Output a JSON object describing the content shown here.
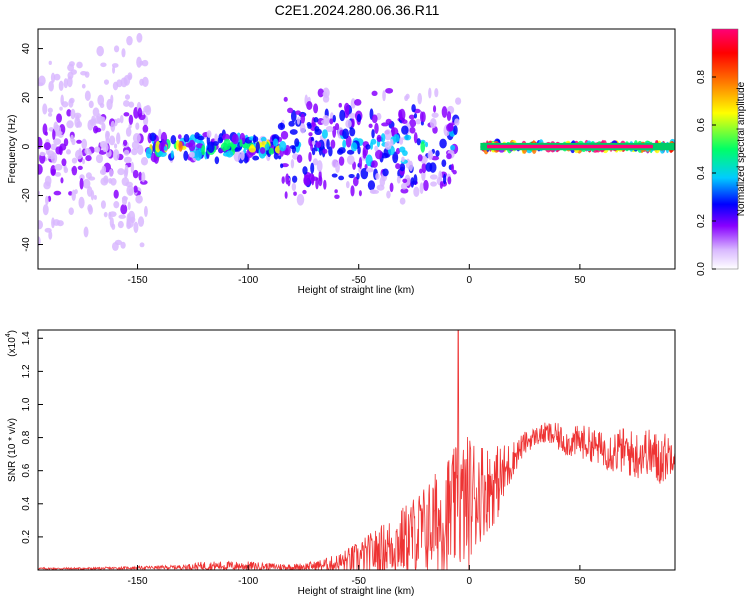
{
  "title": "C2E1.2024.280.06.36.R11",
  "chart_data": [
    {
      "type": "heatmap",
      "xlabel": "Height of straight line (km)",
      "ylabel": "Frequency (Hz)",
      "xlim": [
        -195,
        93
      ],
      "ylim": [
        -50,
        48
      ],
      "xticks": [
        -150,
        -100,
        -50,
        0,
        50
      ],
      "yticks": [
        -40,
        -20,
        0,
        20,
        40
      ],
      "grid": false,
      "colorbar": {
        "label": "Normalized spectral amplitude",
        "range": [
          0,
          1
        ],
        "ticks": [
          "0.0",
          "0.2",
          "0.4",
          "0.6",
          "0.8"
        ],
        "colors": [
          "#ffffff",
          "#d9b8ff",
          "#8800ff",
          "#0000ff",
          "#00ccff",
          "#00ff66",
          "#ffff00",
          "#ff7700",
          "#ff0000",
          "#ff0077"
        ]
      },
      "carrier": {
        "frequency": 0,
        "x_start": 5,
        "x_end": 93,
        "peak_amplitude": 0.95
      },
      "regions": [
        {
          "x_from": -195,
          "x_to": -145,
          "freq_spread": 48,
          "amplitude": 0.15,
          "note": "diffuse"
        },
        {
          "x_from": -145,
          "x_to": -85,
          "freq_spread": 6,
          "amplitude": 0.45
        },
        {
          "x_from": -85,
          "x_to": -5,
          "freq_spread": 25,
          "amplitude": 0.3
        },
        {
          "x_from": 5,
          "x_to": 93,
          "freq_spread": 1,
          "amplitude": 0.95
        }
      ]
    },
    {
      "type": "line",
      "xlabel": "Height of straight line (km)",
      "ylabel": "SNR (10 * v/v)",
      "scale_note": "(x10",
      "scale_exp": "4",
      "xlim": [
        -195,
        93
      ],
      "ylim": [
        0,
        1.45
      ],
      "xticks": [
        -150,
        -100,
        -50,
        0,
        50
      ],
      "yticks": [
        0.2,
        0.4,
        0.6,
        0.8,
        1.0,
        1.2,
        1.4
      ],
      "grid": false,
      "color": "#ee3333",
      "series": [
        {
          "x": [
            -195,
            -170,
            -150,
            -130,
            -120,
            -100,
            -90,
            -80,
            -70,
            -60,
            -50,
            -40,
            -30,
            -20,
            -15,
            -10,
            -5,
            0,
            5,
            10,
            15,
            20,
            25,
            30,
            35,
            40,
            45,
            50,
            55,
            60,
            65,
            70,
            75,
            80,
            85,
            90,
            93
          ],
          "base": [
            0.01,
            0.01,
            0.015,
            0.02,
            0.03,
            0.03,
            0.025,
            0.02,
            0.03,
            0.05,
            0.09,
            0.15,
            0.22,
            0.3,
            0.35,
            0.4,
            0.45,
            0.5,
            0.55,
            0.55,
            0.6,
            0.7,
            0.78,
            0.82,
            0.84,
            0.82,
            0.78,
            0.8,
            0.78,
            0.75,
            0.75,
            0.75,
            0.72,
            0.75,
            0.7,
            0.72,
            0.75
          ],
          "spread": [
            0.008,
            0.01,
            0.012,
            0.02,
            0.04,
            0.04,
            0.03,
            0.03,
            0.04,
            0.08,
            0.15,
            0.22,
            0.3,
            0.4,
            0.45,
            0.55,
            0.55,
            0.6,
            0.45,
            0.35,
            0.3,
            0.15,
            0.1,
            0.08,
            0.1,
            0.12,
            0.12,
            0.15,
            0.15,
            0.15,
            0.2,
            0.2,
            0.22,
            0.2,
            0.25,
            0.2,
            0.15
          ]
        }
      ],
      "peak": {
        "x": -5,
        "y": 1.45
      }
    }
  ]
}
